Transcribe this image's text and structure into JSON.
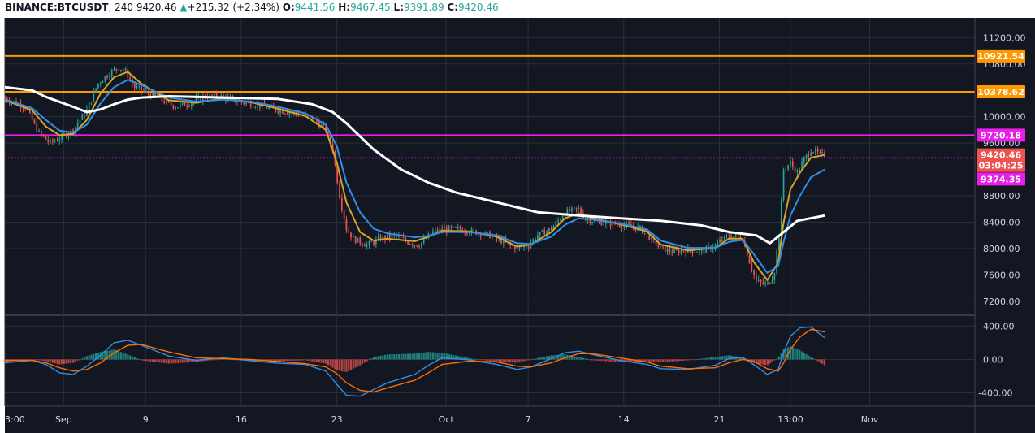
{
  "header": {
    "symbol": "BINANCE:BTCUSDT",
    "interval": "240",
    "last": "9420.46",
    "change_arrow": "▲",
    "change": "+215.32 (+2.34%)",
    "o_label": "O:",
    "o": "9441.56",
    "h_label": "H:",
    "h": "9467.45",
    "l_label": "L:",
    "l": "9391.89",
    "c_label": "C:",
    "c": "9420.46"
  },
  "colors": {
    "background": "#131722",
    "grid": "#2a2e39",
    "axis_text": "#d1d4dc",
    "up": "#26a69a",
    "down": "#ef5350",
    "orange": "#ff9800",
    "magenta": "#e91ee9",
    "white": "#ffffff",
    "ema_fast": "#d6a42a",
    "ema_mid": "#2f8fe8",
    "macd": "#2f8fe8",
    "signal": "#ff6d00"
  },
  "chart_data": {
    "type": "line",
    "candle_style": "candlestick",
    "price_axis": {
      "range": [
        7000,
        11500
      ],
      "ticks": [
        "11200.00",
        "10800.00",
        "10000.00",
        "9600.00",
        "8800.00",
        "8400.00",
        "8000.00",
        "7600.00",
        "7200.00"
      ],
      "tick_values": [
        11200,
        10800,
        10000,
        9600,
        8800,
        8400,
        8000,
        7600,
        7200
      ]
    },
    "macd_axis": {
      "range": [
        -560,
        520
      ],
      "ticks": [
        "400.00",
        "0.00",
        "-400.00"
      ],
      "tick_values": [
        400,
        0,
        -400
      ]
    },
    "x_axis": {
      "range_days": [
        0,
        71
      ],
      "ticks": [
        {
          "label": "3:00",
          "t": 0
        },
        {
          "label": "Sep",
          "t": 4.3
        },
        {
          "label": "9",
          "t": 10.3
        },
        {
          "label": "16",
          "t": 17.3
        },
        {
          "label": "23",
          "t": 24.3
        },
        {
          "label": "Oct",
          "t": 32.3
        },
        {
          "label": "7",
          "t": 38.3
        },
        {
          "label": "14",
          "t": 45.3
        },
        {
          "label": "21",
          "t": 52.3
        },
        {
          "label": "13:00",
          "t": 57.5
        },
        {
          "label": "Nov",
          "t": 63.3
        }
      ]
    },
    "horizontal_lines": [
      {
        "label": "10921.54",
        "value": 10921.54,
        "color": "#ff9800"
      },
      {
        "label": "10378.62",
        "value": 10378.62,
        "color": "#ff9800"
      },
      {
        "label": "9720.18",
        "value": 9720.18,
        "color": "#e91ee9"
      },
      {
        "label": "9374.35",
        "value": 9374.35,
        "color": "#e91ee9",
        "dotted": true
      }
    ],
    "price_labels": [
      {
        "label": "9420.46",
        "value": 9420.46,
        "color": "#ef5350"
      },
      {
        "label": "03:04:25",
        "value": 9260,
        "color": "#ef5350"
      },
      {
        "label": "9374.35",
        "value": 9055,
        "color": "#e91ee9"
      }
    ],
    "price_path": [
      [
        0,
        10280
      ],
      [
        1.5,
        10150
      ],
      [
        2.5,
        9750
      ],
      [
        3.3,
        9600
      ],
      [
        4.2,
        9700
      ],
      [
        5,
        9800
      ],
      [
        6,
        10100
      ],
      [
        6.8,
        10500
      ],
      [
        7.6,
        10650
      ],
      [
        8.3,
        10750
      ],
      [
        8.8,
        10700
      ],
      [
        9.5,
        10450
      ],
      [
        10.5,
        10350
      ],
      [
        11.5,
        10250
      ],
      [
        12.5,
        10150
      ],
      [
        13.5,
        10200
      ],
      [
        14.5,
        10300
      ],
      [
        15.5,
        10320
      ],
      [
        16.5,
        10280
      ],
      [
        17.3,
        10220
      ],
      [
        18.5,
        10180
      ],
      [
        19.5,
        10120
      ],
      [
        20.5,
        10080
      ],
      [
        21.5,
        10050
      ],
      [
        22.5,
        9980
      ],
      [
        23.5,
        9800
      ],
      [
        24,
        9500
      ],
      [
        24.5,
        8800
      ],
      [
        25,
        8300
      ],
      [
        25.5,
        8150
      ],
      [
        26.5,
        8050
      ],
      [
        27.5,
        8150
      ],
      [
        28.5,
        8200
      ],
      [
        29.5,
        8100
      ],
      [
        30.3,
        8050
      ],
      [
        31.3,
        8250
      ],
      [
        32.3,
        8300
      ],
      [
        33.5,
        8280
      ],
      [
        34.5,
        8250
      ],
      [
        35.5,
        8200
      ],
      [
        36.5,
        8100
      ],
      [
        37.5,
        8000
      ],
      [
        38.3,
        8050
      ],
      [
        39,
        8200
      ],
      [
        40,
        8300
      ],
      [
        41,
        8550
      ],
      [
        42,
        8600
      ],
      [
        42.5,
        8450
      ],
      [
        43.5,
        8400
      ],
      [
        44.5,
        8380
      ],
      [
        45.5,
        8350
      ],
      [
        46.5,
        8300
      ],
      [
        47.3,
        8150
      ],
      [
        48,
        8000
      ],
      [
        49,
        7950
      ],
      [
        50,
        7980
      ],
      [
        51,
        7950
      ],
      [
        52,
        8050
      ],
      [
        53,
        8200
      ],
      [
        54,
        8150
      ],
      [
        54.5,
        7800
      ],
      [
        55,
        7500
      ],
      [
        55.8,
        7450
      ],
      [
        56.3,
        7600
      ],
      [
        56.7,
        8300
      ],
      [
        57,
        9200
      ],
      [
        57.5,
        9300
      ],
      [
        58,
        9150
      ],
      [
        58.5,
        9350
      ],
      [
        59,
        9500
      ],
      [
        59.6,
        9430
      ],
      [
        60,
        9420.46
      ]
    ],
    "series": [
      {
        "name": "",
        "color": "#d6a42a",
        "points": [
          [
            0,
            10250
          ],
          [
            2,
            10100
          ],
          [
            3,
            9850
          ],
          [
            4,
            9720
          ],
          [
            5,
            9740
          ],
          [
            6,
            9950
          ],
          [
            7,
            10350
          ],
          [
            8,
            10600
          ],
          [
            9,
            10680
          ],
          [
            10,
            10500
          ],
          [
            12,
            10250
          ],
          [
            14,
            10210
          ],
          [
            16,
            10280
          ],
          [
            18,
            10220
          ],
          [
            20,
            10120
          ],
          [
            22,
            10010
          ],
          [
            23.5,
            9800
          ],
          [
            24.3,
            9300
          ],
          [
            25,
            8700
          ],
          [
            26,
            8250
          ],
          [
            27,
            8120
          ],
          [
            28,
            8150
          ],
          [
            30,
            8110
          ],
          [
            31,
            8180
          ],
          [
            32,
            8270
          ],
          [
            34,
            8260
          ],
          [
            36,
            8180
          ],
          [
            37.5,
            8030
          ],
          [
            38.5,
            8060
          ],
          [
            40,
            8250
          ],
          [
            41,
            8460
          ],
          [
            42,
            8530
          ],
          [
            43,
            8460
          ],
          [
            45,
            8370
          ],
          [
            47,
            8260
          ],
          [
            48,
            8060
          ],
          [
            50,
            7970
          ],
          [
            52,
            8010
          ],
          [
            53,
            8150
          ],
          [
            54,
            8150
          ],
          [
            54.8,
            7800
          ],
          [
            55.8,
            7520
          ],
          [
            56.6,
            7780
          ],
          [
            57,
            8400
          ],
          [
            57.5,
            8900
          ],
          [
            58.2,
            9150
          ],
          [
            59,
            9380
          ],
          [
            60,
            9420
          ]
        ]
      },
      {
        "name": "",
        "color": "#2f8fe8",
        "points": [
          [
            0,
            10260
          ],
          [
            2,
            10130
          ],
          [
            3,
            9950
          ],
          [
            4,
            9790
          ],
          [
            5,
            9760
          ],
          [
            6,
            9880
          ],
          [
            7,
            10200
          ],
          [
            8,
            10450
          ],
          [
            9,
            10560
          ],
          [
            10,
            10480
          ],
          [
            12,
            10290
          ],
          [
            14,
            10230
          ],
          [
            16,
            10260
          ],
          [
            18,
            10230
          ],
          [
            20,
            10150
          ],
          [
            22,
            10050
          ],
          [
            23.5,
            9880
          ],
          [
            24.3,
            9550
          ],
          [
            25,
            9000
          ],
          [
            26,
            8550
          ],
          [
            27,
            8300
          ],
          [
            28,
            8230
          ],
          [
            30,
            8170
          ],
          [
            31,
            8190
          ],
          [
            32,
            8250
          ],
          [
            34,
            8250
          ],
          [
            36,
            8200
          ],
          [
            37.5,
            8080
          ],
          [
            38.5,
            8070
          ],
          [
            40,
            8180
          ],
          [
            41,
            8360
          ],
          [
            42,
            8460
          ],
          [
            43,
            8440
          ],
          [
            45,
            8380
          ],
          [
            47,
            8290
          ],
          [
            48,
            8120
          ],
          [
            50,
            8010
          ],
          [
            52,
            8010
          ],
          [
            53,
            8100
          ],
          [
            54,
            8130
          ],
          [
            54.8,
            7920
          ],
          [
            55.8,
            7630
          ],
          [
            56.6,
            7730
          ],
          [
            57,
            8100
          ],
          [
            57.5,
            8500
          ],
          [
            58.2,
            8800
          ],
          [
            59,
            9080
          ],
          [
            60,
            9200
          ]
        ]
      },
      {
        "name": "",
        "color": "#ffffff",
        "points": [
          [
            0,
            10450
          ],
          [
            2,
            10400
          ],
          [
            3,
            10300
          ],
          [
            5,
            10150
          ],
          [
            6,
            10070
          ],
          [
            7,
            10110
          ],
          [
            8,
            10190
          ],
          [
            9,
            10260
          ],
          [
            10,
            10290
          ],
          [
            12,
            10310
          ],
          [
            16,
            10290
          ],
          [
            20,
            10270
          ],
          [
            22.5,
            10190
          ],
          [
            24,
            10070
          ],
          [
            25,
            9900
          ],
          [
            27,
            9500
          ],
          [
            29,
            9200
          ],
          [
            31,
            9000
          ],
          [
            33,
            8850
          ],
          [
            36,
            8700
          ],
          [
            39,
            8550
          ],
          [
            42,
            8500
          ],
          [
            45,
            8460
          ],
          [
            48,
            8420
          ],
          [
            51,
            8350
          ],
          [
            53,
            8250
          ],
          [
            55,
            8200
          ],
          [
            56,
            8080
          ],
          [
            57,
            8250
          ],
          [
            58,
            8420
          ],
          [
            60,
            8500
          ]
        ]
      }
    ],
    "macd": {
      "macd_line": [
        [
          0,
          -40
        ],
        [
          2,
          -10
        ],
        [
          3,
          -60
        ],
        [
          4,
          -160
        ],
        [
          5,
          -180
        ],
        [
          6,
          -80
        ],
        [
          7,
          50
        ],
        [
          8,
          200
        ],
        [
          9,
          230
        ],
        [
          10,
          170
        ],
        [
          12,
          40
        ],
        [
          14,
          -10
        ],
        [
          16,
          20
        ],
        [
          18,
          -15
        ],
        [
          20,
          -45
        ],
        [
          22,
          -60
        ],
        [
          23.5,
          -140
        ],
        [
          24.3,
          -300
        ],
        [
          25,
          -430
        ],
        [
          26,
          -440
        ],
        [
          27,
          -360
        ],
        [
          28,
          -280
        ],
        [
          30,
          -180
        ],
        [
          31,
          -70
        ],
        [
          32,
          20
        ],
        [
          34,
          -5
        ],
        [
          36,
          -60
        ],
        [
          37.5,
          -120
        ],
        [
          38.5,
          -90
        ],
        [
          40,
          10
        ],
        [
          41,
          80
        ],
        [
          42,
          100
        ],
        [
          43,
          60
        ],
        [
          45,
          -10
        ],
        [
          47,
          -60
        ],
        [
          48,
          -110
        ],
        [
          50,
          -120
        ],
        [
          52,
          -70
        ],
        [
          53,
          10
        ],
        [
          54,
          25
        ],
        [
          54.8,
          -60
        ],
        [
          55.8,
          -180
        ],
        [
          56.6,
          -120
        ],
        [
          57,
          80
        ],
        [
          57.5,
          280
        ],
        [
          58.2,
          380
        ],
        [
          59,
          390
        ],
        [
          60,
          260
        ]
      ],
      "signal_line": [
        [
          0,
          -10
        ],
        [
          2,
          -10
        ],
        [
          3,
          -40
        ],
        [
          4,
          -100
        ],
        [
          5,
          -140
        ],
        [
          6,
          -120
        ],
        [
          7,
          -40
        ],
        [
          8,
          80
        ],
        [
          9,
          170
        ],
        [
          10,
          180
        ],
        [
          12,
          90
        ],
        [
          14,
          20
        ],
        [
          16,
          10
        ],
        [
          18,
          0
        ],
        [
          20,
          -25
        ],
        [
          22,
          -50
        ],
        [
          23.5,
          -90
        ],
        [
          24.3,
          -170
        ],
        [
          25,
          -280
        ],
        [
          26,
          -370
        ],
        [
          27,
          -390
        ],
        [
          28,
          -340
        ],
        [
          30,
          -250
        ],
        [
          31,
          -160
        ],
        [
          32,
          -60
        ],
        [
          34,
          -20
        ],
        [
          36,
          -30
        ],
        [
          37.5,
          -80
        ],
        [
          38.5,
          -90
        ],
        [
          40,
          -40
        ],
        [
          41,
          20
        ],
        [
          42,
          70
        ],
        [
          43,
          70
        ],
        [
          45,
          20
        ],
        [
          47,
          -30
        ],
        [
          48,
          -80
        ],
        [
          50,
          -110
        ],
        [
          52,
          -100
        ],
        [
          53,
          -40
        ],
        [
          54,
          0
        ],
        [
          54.8,
          -20
        ],
        [
          55.8,
          -110
        ],
        [
          56.6,
          -140
        ],
        [
          57,
          -40
        ],
        [
          57.5,
          120
        ],
        [
          58.2,
          270
        ],
        [
          59,
          360
        ],
        [
          60,
          330
        ]
      ]
    }
  }
}
